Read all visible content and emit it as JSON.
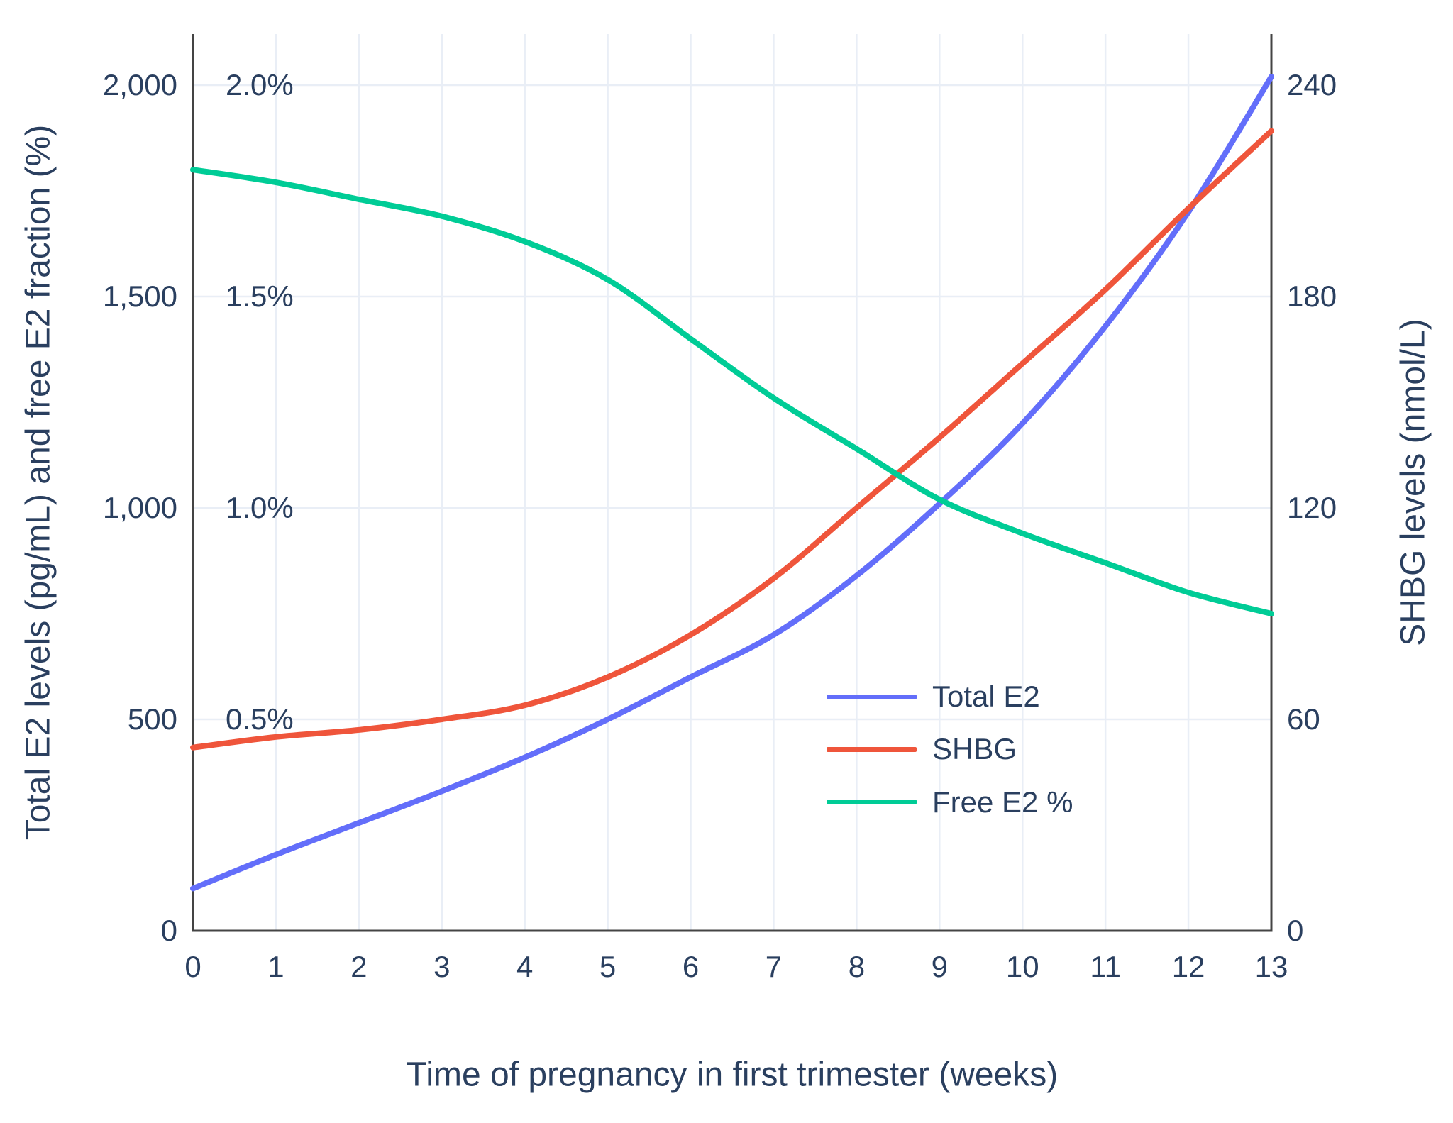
{
  "chart_data": {
    "type": "line",
    "x_label": "Time of pregnancy in first trimester (weeks)",
    "y_left_label": "Total E2 levels (pg/mL) and free E2 fraction (%)",
    "y_right_label": "SHBG levels (nmol/L)",
    "x": [
      0,
      1,
      2,
      3,
      4,
      5,
      6,
      7,
      8,
      9,
      10,
      11,
      12,
      13
    ],
    "x_range": [
      0,
      13
    ],
    "left_range": [
      0,
      2000
    ],
    "right_range": [
      0,
      240
    ],
    "percent_range": [
      0,
      2.0
    ],
    "series": [
      {
        "name": "Total E2",
        "axis": "left",
        "units": "pg/mL",
        "color": "#636EFA",
        "values": [
          100,
          180,
          255,
          330,
          410,
          500,
          600,
          700,
          840,
          1010,
          1200,
          1430,
          1700,
          2020
        ]
      },
      {
        "name": "SHBG",
        "axis": "right",
        "units": "nmol/L",
        "color": "#EF553B",
        "values": [
          52,
          55,
          57,
          60,
          64,
          72,
          84,
          100,
          120,
          140,
          161,
          182,
          205,
          227
        ]
      },
      {
        "name": "Free E2 %",
        "axis": "left-percent",
        "units": "%",
        "color": "#00CC96",
        "values": [
          1.8,
          1.77,
          1.73,
          1.69,
          1.63,
          1.54,
          1.4,
          1.26,
          1.14,
          1.02,
          0.94,
          0.87,
          0.8,
          0.75
        ]
      }
    ],
    "ticks": {
      "x": {
        "values": [
          0,
          1,
          2,
          3,
          4,
          5,
          6,
          7,
          8,
          9,
          10,
          11,
          12,
          13
        ],
        "labels": [
          "0",
          "1",
          "2",
          "3",
          "4",
          "5",
          "6",
          "7",
          "8",
          "9",
          "10",
          "11",
          "12",
          "13"
        ]
      },
      "left": {
        "values": [
          0,
          500,
          1000,
          1500,
          2000
        ],
        "labels": [
          "0",
          "500",
          "1,000",
          "1,500",
          "2,000"
        ]
      },
      "percent": {
        "values": [
          0.5,
          1.0,
          1.5,
          2.0
        ],
        "labels": [
          "0.5%",
          "1.0%",
          "1.5%",
          "2.0%"
        ]
      },
      "right": {
        "values": [
          0,
          60,
          120,
          180,
          240
        ],
        "labels": [
          "0",
          "60",
          "120",
          "180",
          "240"
        ]
      }
    },
    "grid": true,
    "legend_position": "inside-right",
    "colors": {
      "total_e2": "#636EFA",
      "shbg": "#EF553B",
      "free_e2_pct": "#00CC96",
      "grid": "#E9EEF6",
      "axis_line": "#444444",
      "text": "#2A3F5F",
      "background": "#FFFFFF"
    }
  }
}
